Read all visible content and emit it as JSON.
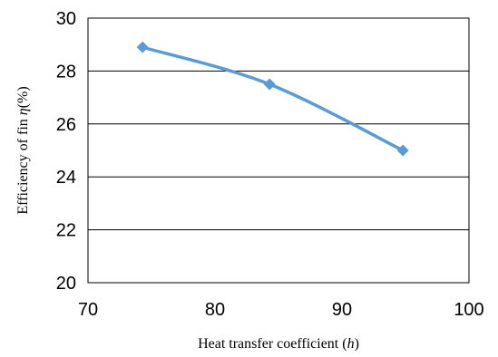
{
  "chart_data": {
    "type": "line",
    "xlabel_prefix": "Heat transfer coefficient (",
    "xlabel_var": "h",
    "xlabel_suffix": ")",
    "ylabel_prefix": "Efficiency of fin ",
    "ylabel_var": "η",
    "ylabel_suffix": "(%)",
    "xlim": [
      70,
      100
    ],
    "ylim": [
      20,
      30
    ],
    "xticks": [
      70,
      80,
      90,
      100
    ],
    "yticks": [
      20,
      22,
      24,
      26,
      28,
      30
    ],
    "grid": "horizontal",
    "series": [
      {
        "x": [
          74.3,
          84.3,
          94.8
        ],
        "y": [
          28.9,
          27.5,
          25.0
        ],
        "color": "#5b9bd5",
        "marker": "diamond"
      }
    ]
  }
}
